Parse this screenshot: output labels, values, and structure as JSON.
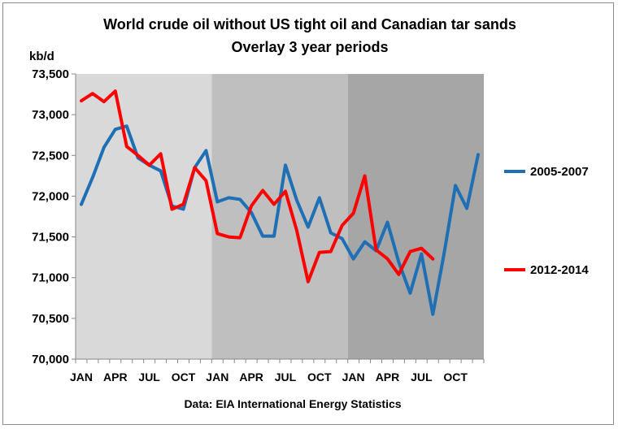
{
  "chart_data": {
    "type": "line",
    "title": "World crude oil without US  tight oil and Canadian tar sands",
    "subtitle": "Overlay 3 year periods",
    "ylabel": "kb/d",
    "source": "Data: EIA International Energy Statistics",
    "ylim": [
      70000,
      73500
    ],
    "yticks": [
      70000,
      70500,
      71000,
      71500,
      72000,
      72500,
      73000,
      73500
    ],
    "ytick_labels": [
      "70,000",
      "70,500",
      "71,000",
      "71,500",
      "72,000",
      "72,500",
      "73,000",
      "73,500"
    ],
    "xtick_labels": [
      "JAN",
      "APR",
      "JUL",
      "OCT",
      "JAN",
      "APR",
      "JUL",
      "OCT",
      "JAN",
      "APR",
      "JUL",
      "OCT"
    ],
    "month_count": 36,
    "grid": false,
    "legend": "right",
    "background_bands": [
      "#d9d9d9",
      "#bfbfbf",
      "#a6a6a6"
    ],
    "series": [
      {
        "name": "2005-2007",
        "color": "#1f6fb5",
        "values": [
          71900,
          72230,
          72600,
          72820,
          72860,
          72470,
          72380,
          72310,
          71880,
          71840,
          72350,
          72560,
          71930,
          71980,
          71960,
          71800,
          71510,
          71510,
          72380,
          71950,
          71620,
          71980,
          71550,
          71480,
          71230,
          71440,
          71330,
          71680,
          71190,
          70810,
          71290,
          70550,
          71300,
          72130,
          71850,
          72510
        ]
      },
      {
        "name": "2012-2014",
        "color": "#ff0000",
        "values": [
          73170,
          73260,
          73160,
          73290,
          72610,
          72500,
          72380,
          72520,
          71840,
          71900,
          72350,
          72190,
          71540,
          71500,
          71490,
          71880,
          72070,
          71900,
          72060,
          71580,
          70950,
          71310,
          71320,
          71640,
          71790,
          72250,
          71340,
          71230,
          71040,
          71320,
          71360,
          71230
        ]
      }
    ]
  }
}
